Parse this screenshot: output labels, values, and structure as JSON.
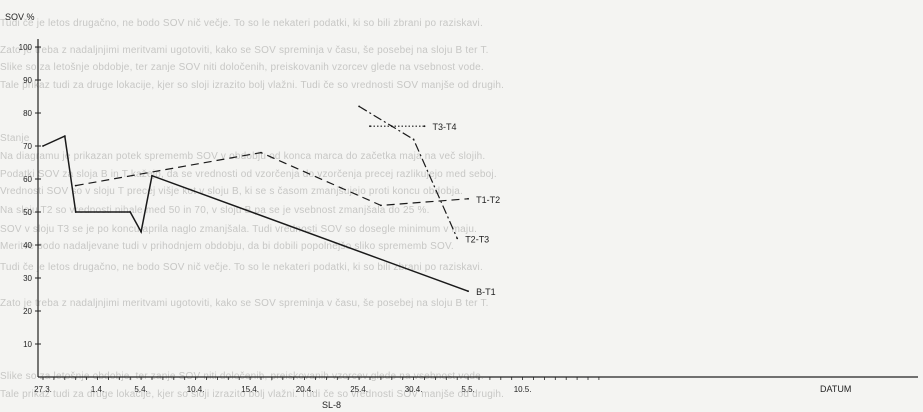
{
  "background_text": [
    "Tudi če je letos drugačno, ne bodo SOV nič večje. To so le nekateri podatki, ki so bili zbrani po raziskavi.",
    "Zato je treba z nadaljnjimi meritvami ugotoviti, kako se SOV spreminja v času, še posebej na sloju B ter T.",
    "Slike so za letošnje obdobje, ter zanje SOV niti določenih, preiskovanih vzorcev glede na vsebnost vode.",
    "Tale prikaz tudi za druge lokacije, kjer so sloji izrazito bolj vlažni. Tudi če so vrednosti SOV manjše od drugih.",
    "Stanje",
    "Na diagramu je prikazan potek sprememb SOV v obdobju od konca marca do začetka maja na več slojih.",
    "Podatki SOV za sloja B in T kažejo, da se vrednosti od vzorčenja do vzorčenja precej razlikujejo med seboj.",
    "Vrednosti SOV so v sloju T precej višje kot v sloju B, ki se s časom zmanjšujejo proti koncu obdobja.",
    "Na sloju T2 so vrednosti nihale med 50 in 70, v sloju B pa se je vsebnost zmanjšala do 25 %.",
    "SOV v sloju T3 se je po koncu aprila naglo zmanjšala. Tudi vrednosti SOV so dosegle minimum v maju.",
    "Meritve bodo nadaljevane tudi v prihodnjem obdobju, da bi dobili popolnejšo sliko sprememb SOV."
  ],
  "chart_data": {
    "type": "line",
    "ylabel": "SOV %",
    "xlabel": "DATUM",
    "station_label": "SL-8",
    "ylim": [
      0,
      100
    ],
    "yticks": [
      10,
      20,
      30,
      40,
      50,
      60,
      70,
      80,
      90,
      100
    ],
    "xlim": [
      "27.3.",
      "17.5."
    ],
    "xtick_labels": [
      "27.3.",
      "1.4.",
      "5.4.",
      "10.4.",
      "15.4.",
      "20.4.",
      "25.4.",
      "30.4.",
      "5.5.",
      "10.5."
    ],
    "grid": false,
    "series": [
      {
        "name": "B-T1",
        "style": "solid",
        "points": [
          {
            "date": "27.3.",
            "value": 70
          },
          {
            "date": "29.3.",
            "value": 73
          },
          {
            "date": "30.3.",
            "value": 50
          },
          {
            "date": "4.4.",
            "value": 50
          },
          {
            "date": "5.4.",
            "value": 44
          },
          {
            "date": "6.4.",
            "value": 61
          },
          {
            "date": "5.5.",
            "value": 26
          }
        ]
      },
      {
        "name": "T1-T2",
        "style": "dashed",
        "points": [
          {
            "date": "30.3.",
            "value": 58
          },
          {
            "date": "16.4.",
            "value": 68
          },
          {
            "date": "27.4.",
            "value": 52
          },
          {
            "date": "5.5.",
            "value": 54
          }
        ]
      },
      {
        "name": "T2-T3",
        "style": "dashdot",
        "points": [
          {
            "date": "25.4.",
            "value": 82
          },
          {
            "date": "28.4.",
            "value": 76
          },
          {
            "date": "30.4.",
            "value": 72
          },
          {
            "date": "4.5.",
            "value": 42
          }
        ]
      },
      {
        "name": "T3-T4",
        "style": "dotted",
        "points": [
          {
            "date": "26.4.",
            "value": 76
          },
          {
            "date": "1.5.",
            "value": 76
          }
        ]
      }
    ]
  }
}
